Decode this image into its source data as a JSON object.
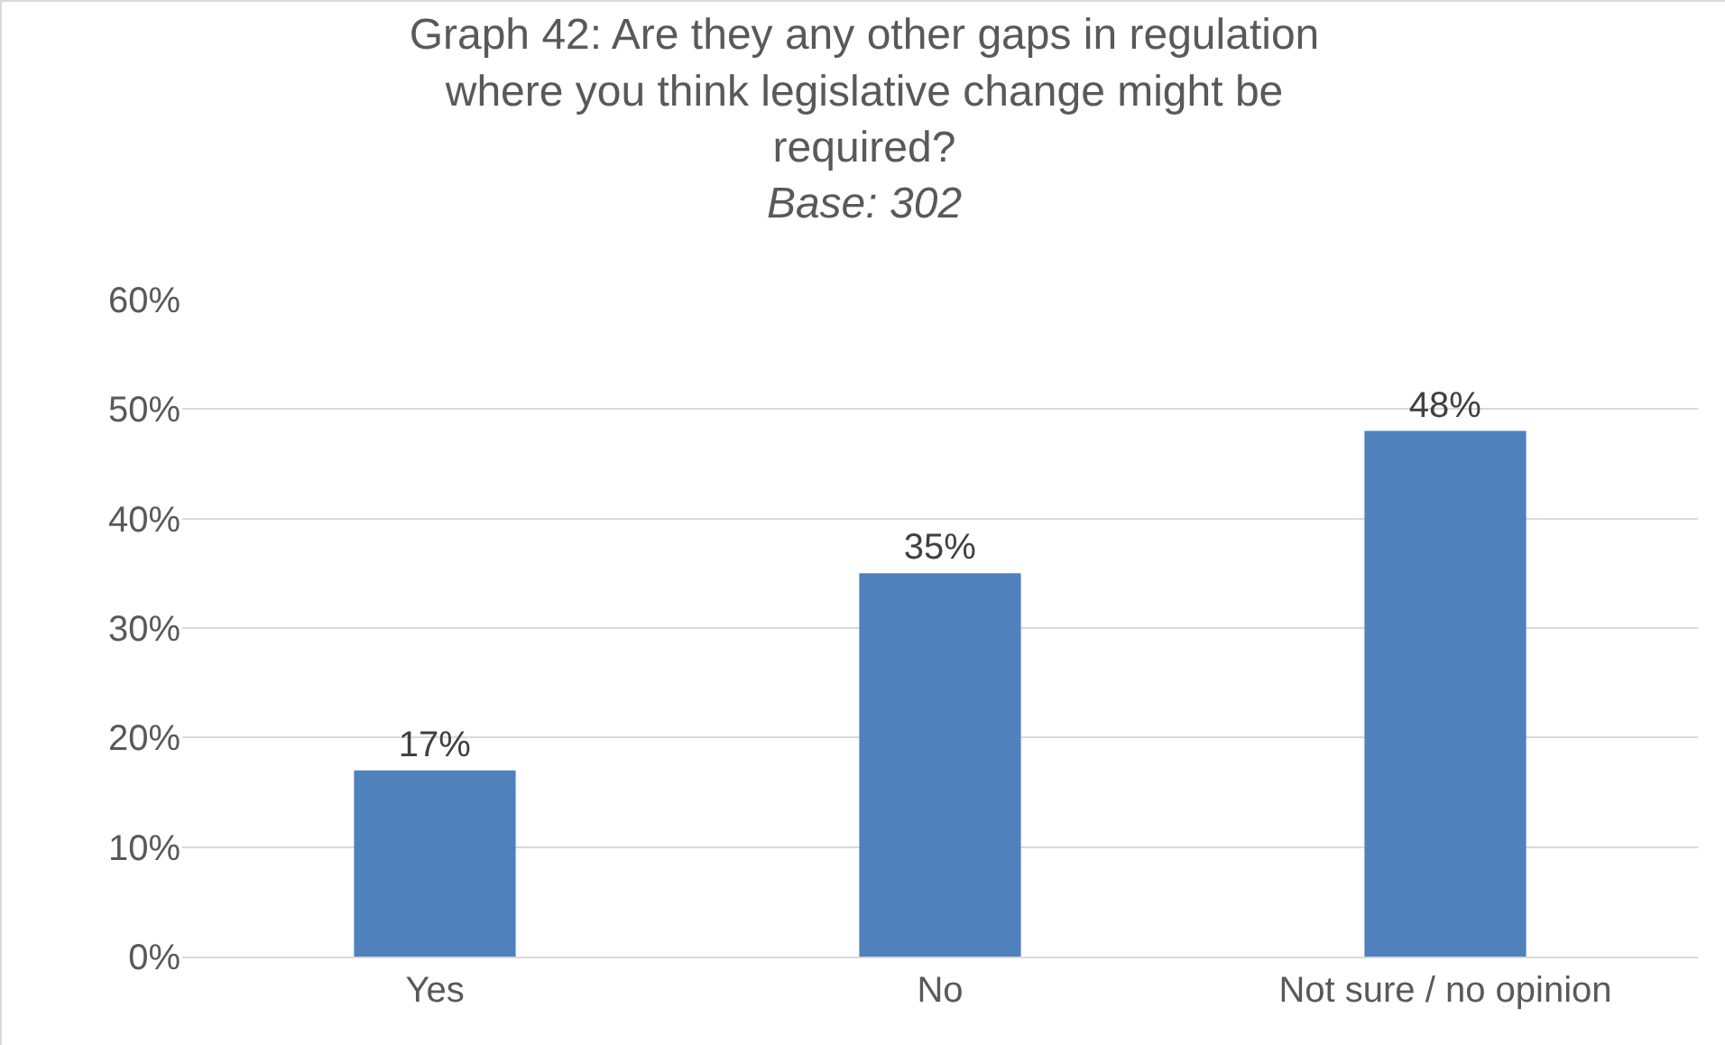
{
  "chart_data": {
    "type": "bar",
    "title": "Graph 42: Are they any other gaps in regulation where you think legislative change might be required?",
    "subtitle": "Base: 302",
    "categories": [
      "Yes",
      "No",
      "Not sure / no opinion"
    ],
    "values": [
      17,
      35,
      48
    ],
    "color": "#4f81bd",
    "value_labels": [
      "17%",
      "35%",
      "48%"
    ],
    "ylim": [
      0,
      60
    ],
    "yticks": [
      {
        "value": 0,
        "label": "0%"
      },
      {
        "value": 10,
        "label": "10%"
      },
      {
        "value": 20,
        "label": "20%"
      },
      {
        "value": 30,
        "label": "30%"
      },
      {
        "value": 40,
        "label": "40%"
      },
      {
        "value": 50,
        "label": "50%"
      },
      {
        "value": 60,
        "label": "60%"
      }
    ],
    "grid": "y",
    "legend": false
  }
}
